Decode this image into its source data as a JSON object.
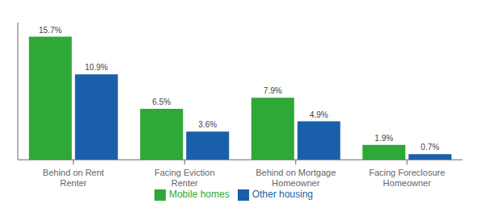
{
  "chart_data": {
    "type": "bar",
    "categories": [
      "Behind on Rent\nRenter",
      "Facing Eviction\nRenter",
      "Behind on Mortgage\nHomeowner",
      "Facing Foreclosure\nHomeowner"
    ],
    "series": [
      {
        "name": "Mobile homes",
        "color": "#2ea836",
        "values": [
          15.7,
          6.5,
          7.9,
          1.9
        ],
        "value_labels": [
          "15.7%",
          "6.5%",
          "7.9%",
          "1.9%"
        ]
      },
      {
        "name": "Other housing",
        "color": "#1a5faa",
        "values": [
          10.9,
          3.6,
          4.9,
          0.7
        ],
        "value_labels": [
          "10.9%",
          "3.6%",
          "4.9%",
          "0.7%"
        ]
      }
    ],
    "ylim": [
      0,
      17.5
    ],
    "grid": false,
    "legend": "bottom",
    "data_labels": true,
    "tick_labels": "x"
  }
}
